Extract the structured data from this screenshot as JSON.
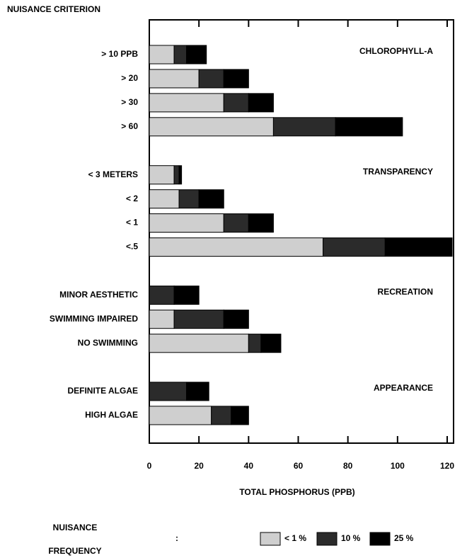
{
  "chart_data": {
    "type": "stacked_barh",
    "title": "NUISANCE CRITERION",
    "xlabel": "TOTAL PHOSPHORUS (PPB)",
    "categories": [
      "> 10 PPB",
      "> 20",
      "> 30",
      "> 60",
      null,
      "< 3 METERS",
      "< 2",
      "< 1",
      "<.5",
      null,
      "MINOR AESTHETIC",
      "SWIMMING IMPAIRED",
      "NO SWIMMING",
      null,
      "DEFINITE ALGAE",
      "HIGH ALGAE"
    ],
    "annotations": [
      {
        "text": "CHLOROPHYLL-A",
        "row": 0
      },
      {
        "text": "TRANSPARENCY",
        "row": 5
      },
      {
        "text": "RECREATION",
        "row": 10
      },
      {
        "text": "APPEARANCE",
        "row": 14
      }
    ],
    "legend_title": [
      "NUISANCE",
      "FREQUENCY"
    ],
    "legend_separator": ":",
    "series": [
      {
        "name": "< 1 %",
        "color": "#cfcfcf",
        "values": [
          10,
          20,
          30,
          50,
          null,
          10,
          12,
          30,
          70,
          null,
          0,
          10,
          40,
          null,
          0,
          25
        ]
      },
      {
        "name": "10 %",
        "color": "#2b2b2b",
        "values": [
          5,
          10,
          10,
          25,
          null,
          2,
          8,
          10,
          25,
          null,
          10,
          20,
          5,
          null,
          15,
          8
        ]
      },
      {
        "name": "25 %",
        "color": "#000000",
        "values": [
          8,
          10,
          10,
          27,
          null,
          1,
          10,
          10,
          27,
          null,
          10,
          10,
          8,
          null,
          9,
          7
        ]
      }
    ],
    "xlim": [
      0,
      120
    ],
    "xticks": [
      0,
      20,
      40,
      60,
      80,
      100,
      120
    ]
  }
}
